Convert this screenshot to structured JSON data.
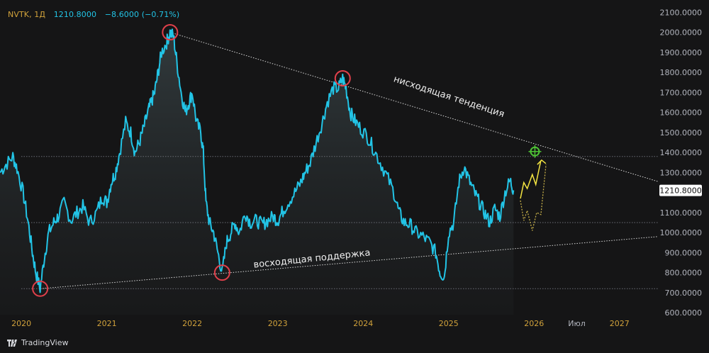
{
  "header": {
    "symbol": "NVTK, 1Д",
    "last": "1210.8000",
    "change": "−8.6000 (−0.71%)"
  },
  "brand": "TradingView",
  "colors": {
    "background": "#151516",
    "line": "#22c4e6",
    "axis_text": "#b2b5be",
    "year_text": "#d1a23b",
    "circle": "#e0404b",
    "yellow": "#f5e642",
    "target": "#4ec235",
    "trend": "#d8d8d8",
    "price_tag": "#ffffff"
  },
  "chart_data": {
    "type": "line",
    "title": "",
    "ylim": [
      590,
      2140
    ],
    "xlim": [
      2019.75,
      2027.45
    ],
    "y_ticks": [
      "600.0000",
      "700.0000",
      "800.0000",
      "900.0000",
      "1000.0000",
      "1100.0000",
      "1200.0000",
      "1300.0000",
      "1400.0000",
      "1500.0000",
      "1600.0000",
      "1700.0000",
      "1800.0000",
      "1900.0000",
      "2000.0000",
      "2100.0000"
    ],
    "x_ticks": [
      {
        "label": "2020",
        "x": 2020.0
      },
      {
        "label": "2021",
        "x": 2021.0
      },
      {
        "label": "2022",
        "x": 2022.0
      },
      {
        "label": "2023",
        "x": 2023.0
      },
      {
        "label": "2024",
        "x": 2024.0
      },
      {
        "label": "2025",
        "x": 2025.0
      },
      {
        "label": "2026",
        "x": 2026.0
      },
      {
        "label": "Июл",
        "x": 2026.5
      },
      {
        "label": "2027",
        "x": 2027.0
      }
    ],
    "price_label": "1210.8000",
    "last_value": 1210.8,
    "series": [
      {
        "values": [
          [
            2019.75,
            1300
          ],
          [
            2019.82,
            1340
          ],
          [
            2019.9,
            1380
          ],
          [
            2019.95,
            1320
          ],
          [
            2020.02,
            1200
          ],
          [
            2020.08,
            1050
          ],
          [
            2020.13,
            900
          ],
          [
            2020.17,
            800
          ],
          [
            2020.22,
            720
          ],
          [
            2020.27,
            880
          ],
          [
            2020.32,
            1000
          ],
          [
            2020.38,
            1050
          ],
          [
            2020.43,
            1080
          ],
          [
            2020.5,
            1150
          ],
          [
            2020.58,
            1060
          ],
          [
            2020.65,
            1100
          ],
          [
            2020.72,
            1130
          ],
          [
            2020.8,
            1050
          ],
          [
            2020.88,
            1100
          ],
          [
            2020.95,
            1180
          ],
          [
            2021.0,
            1150
          ],
          [
            2021.05,
            1250
          ],
          [
            2021.1,
            1300
          ],
          [
            2021.15,
            1400
          ],
          [
            2021.22,
            1550
          ],
          [
            2021.28,
            1500
          ],
          [
            2021.33,
            1400
          ],
          [
            2021.38,
            1450
          ],
          [
            2021.43,
            1520
          ],
          [
            2021.48,
            1600
          ],
          [
            2021.52,
            1650
          ],
          [
            2021.56,
            1700
          ],
          [
            2021.6,
            1800
          ],
          [
            2021.64,
            1900
          ],
          [
            2021.7,
            1950
          ],
          [
            2021.74,
            2000
          ],
          [
            2021.78,
            1980
          ],
          [
            2021.82,
            1850
          ],
          [
            2021.87,
            1700
          ],
          [
            2021.92,
            1600
          ],
          [
            2021.96,
            1650
          ],
          [
            2022.0,
            1700
          ],
          [
            2022.05,
            1550
          ],
          [
            2022.1,
            1500
          ],
          [
            2022.13,
            1400
          ],
          [
            2022.16,
            1150
          ],
          [
            2022.2,
            1050
          ],
          [
            2022.25,
            1000
          ],
          [
            2022.3,
            900
          ],
          [
            2022.35,
            800
          ],
          [
            2022.4,
            950
          ],
          [
            2022.45,
            1000
          ],
          [
            2022.5,
            1050
          ],
          [
            2022.55,
            1000
          ],
          [
            2022.62,
            1100
          ],
          [
            2022.68,
            1050
          ],
          [
            2022.75,
            1060
          ],
          [
            2022.82,
            1040
          ],
          [
            2022.88,
            1060
          ],
          [
            2022.95,
            1080
          ],
          [
            2023.0,
            1060
          ],
          [
            2023.05,
            1100
          ],
          [
            2023.12,
            1150
          ],
          [
            2023.2,
            1200
          ],
          [
            2023.27,
            1250
          ],
          [
            2023.32,
            1300
          ],
          [
            2023.38,
            1350
          ],
          [
            2023.45,
            1450
          ],
          [
            2023.52,
            1550
          ],
          [
            2023.58,
            1650
          ],
          [
            2023.65,
            1720
          ],
          [
            2023.71,
            1720
          ],
          [
            2023.76,
            1770
          ],
          [
            2023.8,
            1720
          ],
          [
            2023.85,
            1600
          ],
          [
            2023.9,
            1560
          ],
          [
            2023.97,
            1520
          ],
          [
            2024.05,
            1480
          ],
          [
            2024.12,
            1420
          ],
          [
            2024.2,
            1350
          ],
          [
            2024.28,
            1280
          ],
          [
            2024.36,
            1200
          ],
          [
            2024.42,
            1100
          ],
          [
            2024.48,
            1050
          ],
          [
            2024.55,
            1040
          ],
          [
            2024.62,
            1000
          ],
          [
            2024.7,
            980
          ],
          [
            2024.78,
            950
          ],
          [
            2024.85,
            900
          ],
          [
            2024.9,
            800
          ],
          [
            2024.95,
            780
          ],
          [
            2025.0,
            1000
          ],
          [
            2025.06,
            1050
          ],
          [
            2025.12,
            1250
          ],
          [
            2025.18,
            1330
          ],
          [
            2025.24,
            1260
          ],
          [
            2025.3,
            1200
          ],
          [
            2025.36,
            1150
          ],
          [
            2025.42,
            1100
          ],
          [
            2025.48,
            1050
          ],
          [
            2025.54,
            1120
          ],
          [
            2025.6,
            1080
          ],
          [
            2025.66,
            1200
          ],
          [
            2025.72,
            1260
          ],
          [
            2025.76,
            1211
          ]
        ]
      }
    ],
    "annotations": [
      {
        "text": "нисходящая тенденция"
      },
      {
        "text": "восходящая поддержка"
      }
    ]
  }
}
